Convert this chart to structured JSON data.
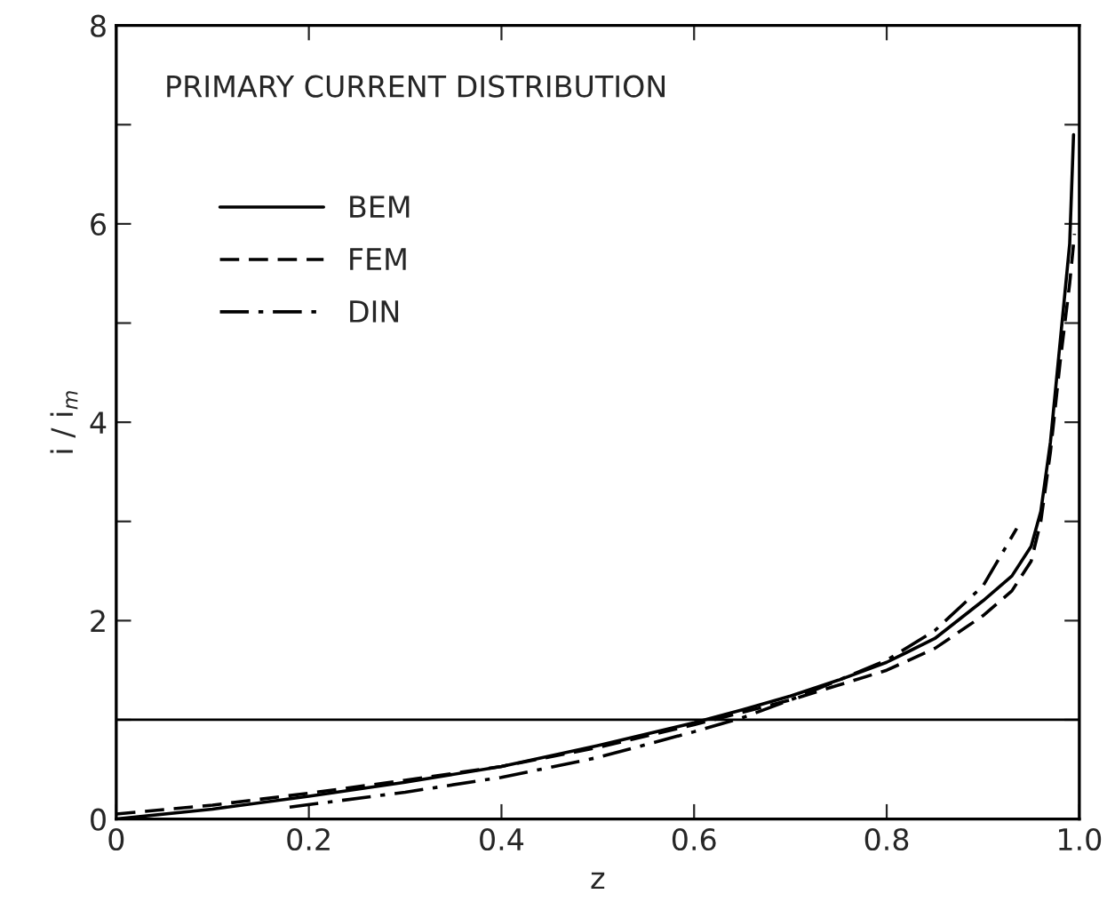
{
  "chart_data": {
    "type": "line",
    "title": "PRIMARY CURRENT DISTRIBUTION",
    "xlabel": "z",
    "ylabel": "i / i$_{m}$",
    "xlim": [
      0,
      1.0
    ],
    "xticks": [
      {
        "value": 0,
        "label": "0"
      },
      0.2,
      0.4,
      0.6,
      0.8,
      {
        "value": 1.0,
        "label": "1.0"
      }
    ],
    "ylim": [
      0,
      8
    ],
    "yticks": [
      0,
      {
        "value": 1,
        "label": null
      },
      2,
      {
        "value": 3,
        "label": null
      },
      4,
      {
        "value": 5,
        "label": null
      },
      6,
      {
        "value": 7,
        "label": null
      },
      8
    ],
    "grid": false,
    "legend": "top left",
    "marker": "none",
    "ref_lines": [
      {
        "axis": "y",
        "value": 1,
        "color": "#000000",
        "line_style": "solid"
      }
    ],
    "series": [
      {
        "name": "BEM",
        "color": "#000000",
        "line_style": "solid",
        "x": [
          0,
          0.1,
          0.2,
          0.3,
          0.4,
          0.5,
          0.6,
          0.65,
          0.7,
          0.75,
          0.8,
          0.85,
          0.9,
          0.93,
          0.95,
          0.96,
          0.97,
          0.98,
          0.99,
          0.994
        ],
        "values": [
          0,
          0.1,
          0.23,
          0.37,
          0.53,
          0.74,
          0.97,
          1.1,
          1.24,
          1.4,
          1.58,
          1.82,
          2.2,
          2.45,
          2.75,
          3.1,
          3.8,
          4.8,
          5.8,
          6.9
        ]
      },
      {
        "name": "FEM",
        "color": "#000000",
        "line_style": "dashed",
        "x": [
          0,
          0.1,
          0.2,
          0.3,
          0.4,
          0.5,
          0.6,
          0.7,
          0.8,
          0.85,
          0.9,
          0.93,
          0.95,
          0.96,
          0.97,
          0.98,
          0.99,
          0.995
        ],
        "values": [
          0.05,
          0.14,
          0.26,
          0.39,
          0.53,
          0.72,
          0.95,
          1.2,
          1.5,
          1.72,
          2.05,
          2.3,
          2.6,
          3.0,
          3.7,
          4.6,
          5.4,
          5.9
        ]
      },
      {
        "name": "DIN",
        "color": "#000000",
        "line_style": "dashdot",
        "x": [
          0.18,
          0.3,
          0.4,
          0.5,
          0.6,
          0.65,
          0.7,
          0.8,
          0.85,
          0.9,
          0.935
        ],
        "values": [
          0.12,
          0.27,
          0.42,
          0.62,
          0.88,
          1.02,
          1.2,
          1.6,
          1.9,
          2.35,
          2.93
        ]
      }
    ]
  }
}
